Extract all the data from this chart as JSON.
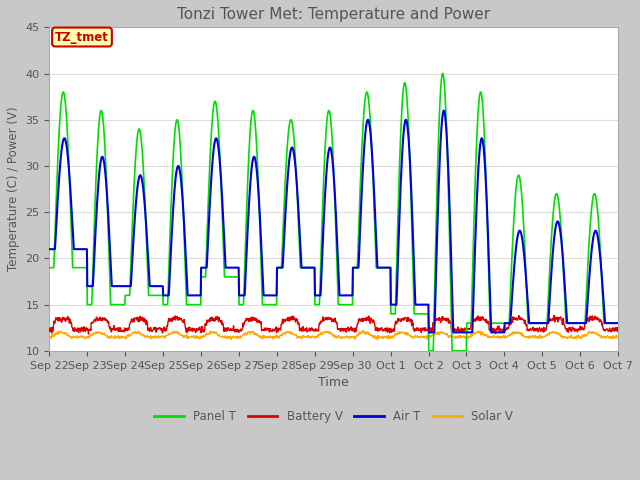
{
  "title": "Tonzi Tower Met: Temperature and Power",
  "xlabel": "Time",
  "ylabel": "Temperature (C) / Power (V)",
  "ylim": [
    10,
    45
  ],
  "fig_bg_color": "#c8c8c8",
  "plot_bg_color": "#ffffff",
  "legend_labels": [
    "Panel T",
    "Battery V",
    "Air T",
    "Solar V"
  ],
  "legend_colors": [
    "#00dd00",
    "#dd0000",
    "#0000dd",
    "#ffaa00"
  ],
  "annotation_text": "TZ_tmet",
  "annotation_bg": "#ffffaa",
  "annotation_border": "#cc0000",
  "annotation_text_color": "#cc0000",
  "x_tick_labels": [
    "Sep 22",
    "Sep 23",
    "Sep 24",
    "Sep 25",
    "Sep 26",
    "Sep 27",
    "Sep 28",
    "Sep 29",
    "Sep 30",
    "Oct 1",
    "Oct 2",
    "Oct 3",
    "Oct 4",
    "Oct 5",
    "Oct 6",
    "Oct 7"
  ],
  "n_days": 15,
  "panel_t_peaks": [
    38,
    36,
    34,
    35,
    37,
    36,
    35,
    36,
    38,
    39,
    40,
    38,
    29,
    27,
    27
  ],
  "panel_t_troughs": [
    19,
    15,
    16,
    15,
    18,
    15,
    19,
    15,
    19,
    14,
    10,
    13,
    13,
    13,
    13
  ],
  "air_t_peaks": [
    33,
    31,
    29,
    30,
    33,
    31,
    32,
    32,
    35,
    35,
    36,
    33,
    23,
    24,
    23
  ],
  "air_t_troughs": [
    21,
    17,
    17,
    16,
    19,
    16,
    19,
    16,
    19,
    15,
    12,
    12,
    13,
    13,
    13
  ],
  "battery_base": 12.3,
  "battery_spike": 2.0,
  "solar_base": 11.5,
  "solar_range": 1.0,
  "points_per_day": 96
}
